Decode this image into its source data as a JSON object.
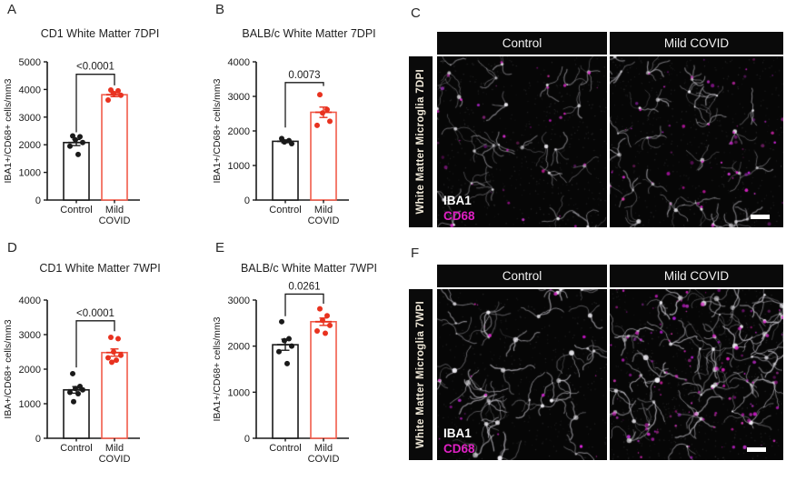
{
  "colors": {
    "axis_black": "#1a1a1a",
    "control_point": "#1a1a1a",
    "covid_point": "#e8321f",
    "covid_bar_stroke": "#f15b4a",
    "magenta": "#e020c4",
    "header_bg": "#0a0a0a",
    "header_text": "#f2f2f2",
    "sidebar_text": "#efe8d8"
  },
  "chart_data": [
    {
      "panel": "A",
      "type": "bar",
      "title": "CD1 White Matter 7DPI",
      "ylabel": "IBA1+/CD68+ cells/mm3",
      "ylim": [
        0,
        5000
      ],
      "yticks": [
        0,
        1000,
        2000,
        3000,
        4000,
        5000
      ],
      "categories": [
        "Control",
        "Mild COVID"
      ],
      "p_value": "<0.0001",
      "series": [
        {
          "name": "Control",
          "color": "#1a1a1a",
          "bar_color": "#1a1a1a",
          "mean": 2080,
          "sem": 110,
          "points": [
            2320,
            2290,
            2180,
            2080,
            1950,
            1650
          ]
        },
        {
          "name": "Mild COVID",
          "color": "#e8321f",
          "bar_color": "#f15b4a",
          "mean": 3810,
          "sem": 70,
          "points": [
            3980,
            3950,
            3860,
            3790,
            3620
          ]
        }
      ],
      "bracket": {
        "top": 4550,
        "left_bottom": 2450,
        "right_bottom": 4150
      }
    },
    {
      "panel": "B",
      "type": "bar",
      "title": "BALB/c White Matter 7DPI",
      "ylabel": "IBA1+/CD68+ cells/mm3",
      "ylim": [
        0,
        4000
      ],
      "yticks": [
        0,
        1000,
        2000,
        3000,
        4000
      ],
      "categories": [
        "Control",
        "Mild COVID"
      ],
      "p_value": "0.0073",
      "series": [
        {
          "name": "Control",
          "color": "#1a1a1a",
          "bar_color": "#1a1a1a",
          "mean": 1700,
          "sem": 40,
          "points": [
            1780,
            1720,
            1680,
            1630
          ]
        },
        {
          "name": "Mild COVID",
          "color": "#e8321f",
          "bar_color": "#f15b4a",
          "mean": 2540,
          "sem": 150,
          "points": [
            3050,
            2620,
            2520,
            2280,
            2160
          ]
        }
      ],
      "bracket": {
        "top": 3400,
        "left_bottom": 2100,
        "right_bottom": 3300
      }
    },
    {
      "panel": "D",
      "type": "bar",
      "title": "CD1 White Matter 7WPI",
      "ylabel": "IBA+/CD68+ cells/mm3",
      "ylim": [
        0,
        4000
      ],
      "yticks": [
        0,
        1000,
        2000,
        3000,
        4000
      ],
      "categories": [
        "Control",
        "Mild COVID"
      ],
      "p_value": "<0.0001",
      "series": [
        {
          "name": "Control",
          "color": "#1a1a1a",
          "bar_color": "#1a1a1a",
          "mean": 1400,
          "sem": 95,
          "points": [
            1870,
            1500,
            1440,
            1400,
            1330,
            1290,
            1060
          ]
        },
        {
          "name": "Mild COVID",
          "color": "#e8321f",
          "bar_color": "#f15b4a",
          "mean": 2480,
          "sem": 105,
          "points": [
            2920,
            2880,
            2500,
            2400,
            2330,
            2260,
            2200
          ]
        }
      ],
      "bracket": {
        "top": 3400,
        "left_bottom": 2050,
        "right_bottom": 3100
      }
    },
    {
      "panel": "E",
      "type": "bar",
      "title": "BALB/c White Matter 7WPI",
      "ylabel": "IBA1+/CD68+ cells/mm3",
      "ylim": [
        0,
        3000
      ],
      "yticks": [
        0,
        1000,
        2000,
        3000
      ],
      "categories": [
        "Control",
        "Mild COVID"
      ],
      "p_value": "0.0261",
      "series": [
        {
          "name": "Control",
          "color": "#1a1a1a",
          "bar_color": "#1a1a1a",
          "mean": 2030,
          "sem": 120,
          "points": [
            2530,
            2160,
            2120,
            2000,
            1880,
            1620
          ]
        },
        {
          "name": "Mild COVID",
          "color": "#e8321f",
          "bar_color": "#f15b4a",
          "mean": 2530,
          "sem": 80,
          "points": [
            2810,
            2660,
            2560,
            2450,
            2330,
            2280
          ]
        }
      ],
      "bracket": {
        "top": 3130,
        "left_bottom": 2650,
        "right_bottom": 2920
      }
    }
  ],
  "micro_panels": [
    {
      "panel": "C",
      "row_label": "White Matter Microglia 7DPI",
      "columns": [
        "Control",
        "Mild COVID"
      ],
      "stain_labels": [
        {
          "text": "IBA1",
          "color": "#ffffff"
        },
        {
          "text": "CD68",
          "color": "#e020c4"
        }
      ]
    },
    {
      "panel": "F",
      "row_label": "White Matter Microglia 7WPI",
      "columns": [
        "Control",
        "Mild COVID"
      ],
      "stain_labels": [
        {
          "text": "IBA1",
          "color": "#ffffff"
        },
        {
          "text": "CD68",
          "color": "#e020c4"
        }
      ]
    }
  ]
}
